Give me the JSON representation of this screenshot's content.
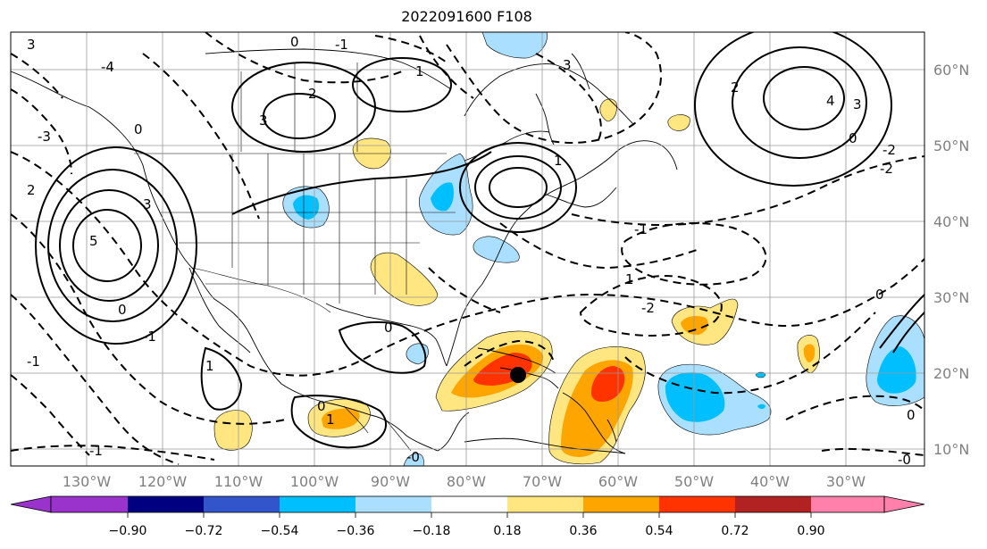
{
  "title": "2022091600 F108",
  "lat_labels": [
    "60°N",
    "50°N",
    "40°N",
    "30°N",
    "20°N",
    "10°N"
  ],
  "lon_labels": [
    "130°W",
    "120°W",
    "110°W",
    "100°W",
    "90°W",
    "80°W",
    "70°W",
    "60°W",
    "50°W",
    "40°W",
    "30°W"
  ],
  "colorbar": {
    "ticks": [
      "−0.90",
      "−0.72",
      "−0.54",
      "−0.36",
      "−0.18",
      "0.18",
      "0.36",
      "0.54",
      "0.72",
      "0.90"
    ],
    "colors": [
      "#9933cc",
      "#000080",
      "#3355cc",
      "#00bfff",
      "#aadfff",
      "#ffffff",
      "#ffe680",
      "#ffa500",
      "#ff3300",
      "#b22222",
      "#ff80aa"
    ]
  },
  "shading_colors": {
    "cool_light": "#aadfff",
    "cool_mid": "#00bfff",
    "warm_light": "#ffe680",
    "warm_mid": "#ffa500",
    "warm_strong": "#ff3300"
  },
  "contour_labels": [
    "3",
    "-3",
    "-4",
    "0",
    "1",
    "2",
    "-2",
    "4",
    "-1",
    "5",
    "-0"
  ]
}
